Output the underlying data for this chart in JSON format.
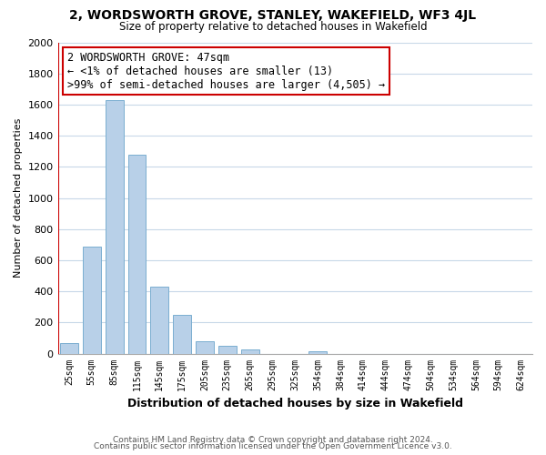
{
  "title": "2, WORDSWORTH GROVE, STANLEY, WAKEFIELD, WF3 4JL",
  "subtitle": "Size of property relative to detached houses in Wakefield",
  "xlabel": "Distribution of detached houses by size in Wakefield",
  "ylabel": "Number of detached properties",
  "bar_labels": [
    "25sqm",
    "55sqm",
    "85sqm",
    "115sqm",
    "145sqm",
    "175sqm",
    "205sqm",
    "235sqm",
    "265sqm",
    "295sqm",
    "325sqm",
    "354sqm",
    "384sqm",
    "414sqm",
    "444sqm",
    "474sqm",
    "504sqm",
    "534sqm",
    "564sqm",
    "594sqm",
    "624sqm"
  ],
  "bar_values": [
    65,
    690,
    1630,
    1280,
    430,
    248,
    80,
    50,
    28,
    0,
    0,
    15,
    0,
    0,
    0,
    0,
    0,
    0,
    0,
    0,
    0
  ],
  "bar_color": "#b8d0e8",
  "bar_edge_color": "#7aaed0",
  "marker_color": "#cc0000",
  "annotation_line1": "2 WORDSWORTH GROVE: 47sqm",
  "annotation_line2": "← <1% of detached houses are smaller (13)",
  "annotation_line3": ">99% of semi-detached houses are larger (4,505) →",
  "annotation_box_color": "#ffffff",
  "annotation_box_edge": "#cc0000",
  "ylim": [
    0,
    2000
  ],
  "yticks": [
    0,
    200,
    400,
    600,
    800,
    1000,
    1200,
    1400,
    1600,
    1800,
    2000
  ],
  "footer1": "Contains HM Land Registry data © Crown copyright and database right 2024.",
  "footer2": "Contains public sector information licensed under the Open Government Licence v3.0.",
  "bg_color": "#ffffff",
  "grid_color": "#c8d8e8"
}
